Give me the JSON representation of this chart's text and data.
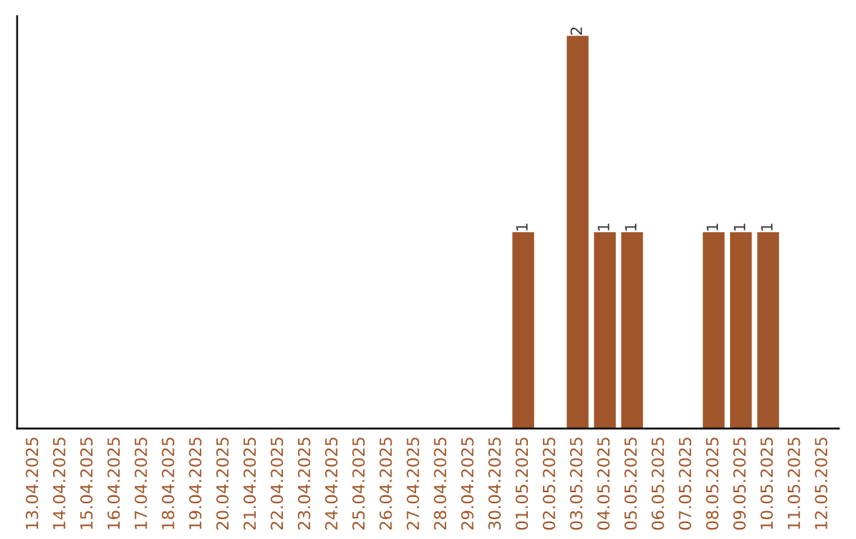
{
  "chart_data": {
    "type": "bar",
    "categories": [
      "13.04.2025",
      "14.04.2025",
      "15.04.2025",
      "16.04.2025",
      "17.04.2025",
      "18.04.2025",
      "19.04.2025",
      "20.04.2025",
      "21.04.2025",
      "22.04.2025",
      "23.04.2025",
      "24.04.2025",
      "25.04.2025",
      "26.04.2025",
      "27.04.2025",
      "28.04.2025",
      "29.04.2025",
      "30.04.2025",
      "01.05.2025",
      "02.05.2025",
      "03.05.2025",
      "04.05.2025",
      "05.05.2025",
      "06.05.2025",
      "07.05.2025",
      "08.05.2025",
      "09.05.2025",
      "10.05.2025",
      "11.05.2025",
      "12.05.2025"
    ],
    "values": [
      null,
      null,
      null,
      null,
      null,
      null,
      null,
      null,
      null,
      null,
      null,
      null,
      null,
      null,
      null,
      null,
      null,
      null,
      1,
      null,
      2,
      1,
      1,
      null,
      null,
      1,
      1,
      1,
      null,
      null
    ],
    "data_labels": true,
    "color": "#a0562a",
    "tick_labels": "x",
    "grid": false
  }
}
